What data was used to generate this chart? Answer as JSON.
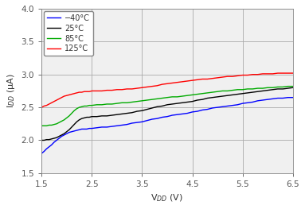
{
  "title": "",
  "xlabel": "V$_{DD}$ (V)",
  "ylabel": "I$_{DD}$ (μA)",
  "xlim": [
    1.5,
    6.5
  ],
  "ylim": [
    1.5,
    4.0
  ],
  "xticks": [
    1.5,
    2.5,
    3.5,
    4.5,
    5.5,
    6.5
  ],
  "yticks": [
    1.5,
    2.0,
    2.5,
    3.0,
    3.5,
    4.0
  ],
  "grid": true,
  "legend_labels": [
    "−40°C",
    "25°C",
    "85°C",
    "125°C"
  ],
  "line_colors": [
    "#0000ff",
    "#000000",
    "#00aa00",
    "#ff0000"
  ],
  "bg_color": "#f0f0f0",
  "fig_color": "#ffffff",
  "tick_color": "#555555",
  "grid_color": "#aaaaaa",
  "series": {
    "neg40": {
      "x": [
        1.5,
        1.55,
        1.6,
        1.65,
        1.7,
        1.75,
        1.8,
        1.85,
        1.9,
        1.95,
        2.0,
        2.05,
        2.1,
        2.15,
        2.2,
        2.25,
        2.3,
        2.35,
        2.4,
        2.45,
        2.5,
        2.6,
        2.7,
        2.8,
        2.9,
        3.0,
        3.1,
        3.2,
        3.3,
        3.4,
        3.5,
        3.6,
        3.7,
        3.8,
        3.9,
        4.0,
        4.1,
        4.2,
        4.3,
        4.4,
        4.5,
        4.6,
        4.7,
        4.8,
        4.9,
        5.0,
        5.1,
        5.2,
        5.3,
        5.4,
        5.5,
        5.6,
        5.7,
        5.8,
        5.9,
        6.0,
        6.1,
        6.2,
        6.3,
        6.4,
        6.5
      ],
      "y": [
        1.8,
        1.83,
        1.87,
        1.9,
        1.93,
        1.97,
        2.0,
        2.03,
        2.06,
        2.08,
        2.1,
        2.12,
        2.13,
        2.14,
        2.15,
        2.16,
        2.17,
        2.17,
        2.17,
        2.18,
        2.18,
        2.19,
        2.2,
        2.2,
        2.21,
        2.22,
        2.23,
        2.24,
        2.26,
        2.27,
        2.28,
        2.3,
        2.32,
        2.33,
        2.35,
        2.36,
        2.38,
        2.39,
        2.4,
        2.41,
        2.43,
        2.44,
        2.46,
        2.47,
        2.49,
        2.5,
        2.51,
        2.52,
        2.53,
        2.54,
        2.56,
        2.57,
        2.58,
        2.6,
        2.61,
        2.62,
        2.63,
        2.64,
        2.64,
        2.65,
        2.65
      ]
    },
    "pos25": {
      "x": [
        1.5,
        1.55,
        1.6,
        1.65,
        1.7,
        1.75,
        1.8,
        1.85,
        1.9,
        1.95,
        2.0,
        2.05,
        2.1,
        2.15,
        2.2,
        2.25,
        2.3,
        2.35,
        2.4,
        2.45,
        2.5,
        2.6,
        2.7,
        2.8,
        2.9,
        3.0,
        3.1,
        3.2,
        3.3,
        3.4,
        3.5,
        3.6,
        3.7,
        3.8,
        3.9,
        4.0,
        4.1,
        4.2,
        4.3,
        4.4,
        4.5,
        4.6,
        4.7,
        4.8,
        4.9,
        5.0,
        5.1,
        5.2,
        5.3,
        5.4,
        5.5,
        5.6,
        5.7,
        5.8,
        5.9,
        6.0,
        6.1,
        6.2,
        6.3,
        6.4,
        6.5
      ],
      "y": [
        2.0,
        2.0,
        2.01,
        2.01,
        2.02,
        2.03,
        2.04,
        2.06,
        2.08,
        2.1,
        2.13,
        2.16,
        2.2,
        2.24,
        2.28,
        2.31,
        2.33,
        2.34,
        2.35,
        2.35,
        2.36,
        2.36,
        2.37,
        2.37,
        2.38,
        2.39,
        2.4,
        2.41,
        2.42,
        2.44,
        2.45,
        2.47,
        2.49,
        2.51,
        2.52,
        2.54,
        2.55,
        2.56,
        2.57,
        2.58,
        2.59,
        2.61,
        2.62,
        2.64,
        2.65,
        2.66,
        2.67,
        2.68,
        2.69,
        2.7,
        2.71,
        2.72,
        2.73,
        2.74,
        2.75,
        2.76,
        2.77,
        2.78,
        2.78,
        2.79,
        2.8
      ]
    },
    "pos85": {
      "x": [
        1.5,
        1.55,
        1.6,
        1.65,
        1.7,
        1.75,
        1.8,
        1.85,
        1.9,
        1.95,
        2.0,
        2.05,
        2.1,
        2.15,
        2.2,
        2.25,
        2.3,
        2.35,
        2.4,
        2.45,
        2.5,
        2.6,
        2.7,
        2.8,
        2.9,
        3.0,
        3.1,
        3.2,
        3.3,
        3.4,
        3.5,
        3.6,
        3.7,
        3.8,
        3.9,
        4.0,
        4.1,
        4.2,
        4.3,
        4.4,
        4.5,
        4.6,
        4.7,
        4.8,
        4.9,
        5.0,
        5.1,
        5.2,
        5.3,
        5.4,
        5.5,
        5.6,
        5.7,
        5.8,
        5.9,
        6.0,
        6.1,
        6.2,
        6.3,
        6.4,
        6.5
      ],
      "y": [
        2.22,
        2.22,
        2.22,
        2.23,
        2.23,
        2.24,
        2.25,
        2.27,
        2.29,
        2.31,
        2.34,
        2.37,
        2.41,
        2.45,
        2.48,
        2.5,
        2.51,
        2.52,
        2.52,
        2.53,
        2.53,
        2.54,
        2.54,
        2.55,
        2.55,
        2.56,
        2.57,
        2.57,
        2.58,
        2.59,
        2.6,
        2.61,
        2.62,
        2.63,
        2.64,
        2.65,
        2.66,
        2.66,
        2.67,
        2.68,
        2.69,
        2.7,
        2.71,
        2.72,
        2.73,
        2.74,
        2.75,
        2.75,
        2.76,
        2.77,
        2.77,
        2.78,
        2.78,
        2.79,
        2.79,
        2.8,
        2.8,
        2.81,
        2.81,
        2.82,
        2.82
      ]
    },
    "pos125": {
      "x": [
        1.5,
        1.55,
        1.6,
        1.65,
        1.7,
        1.75,
        1.8,
        1.85,
        1.9,
        1.95,
        2.0,
        2.05,
        2.1,
        2.15,
        2.2,
        2.25,
        2.3,
        2.35,
        2.4,
        2.45,
        2.5,
        2.6,
        2.7,
        2.8,
        2.9,
        3.0,
        3.1,
        3.2,
        3.3,
        3.4,
        3.5,
        3.6,
        3.7,
        3.8,
        3.9,
        4.0,
        4.1,
        4.2,
        4.3,
        4.4,
        4.5,
        4.6,
        4.7,
        4.8,
        4.9,
        5.0,
        5.1,
        5.2,
        5.3,
        5.4,
        5.5,
        5.6,
        5.7,
        5.8,
        5.9,
        6.0,
        6.1,
        6.2,
        6.3,
        6.4,
        6.5
      ],
      "y": [
        2.5,
        2.52,
        2.53,
        2.55,
        2.57,
        2.59,
        2.61,
        2.63,
        2.65,
        2.67,
        2.68,
        2.69,
        2.7,
        2.71,
        2.72,
        2.73,
        2.73,
        2.74,
        2.74,
        2.74,
        2.75,
        2.75,
        2.75,
        2.76,
        2.76,
        2.77,
        2.77,
        2.78,
        2.78,
        2.79,
        2.8,
        2.81,
        2.82,
        2.83,
        2.85,
        2.86,
        2.87,
        2.88,
        2.89,
        2.9,
        2.91,
        2.92,
        2.93,
        2.93,
        2.94,
        2.95,
        2.96,
        2.97,
        2.97,
        2.98,
        2.99,
        2.99,
        3.0,
        3.0,
        3.01,
        3.01,
        3.01,
        3.02,
        3.02,
        3.02,
        3.02
      ]
    }
  }
}
